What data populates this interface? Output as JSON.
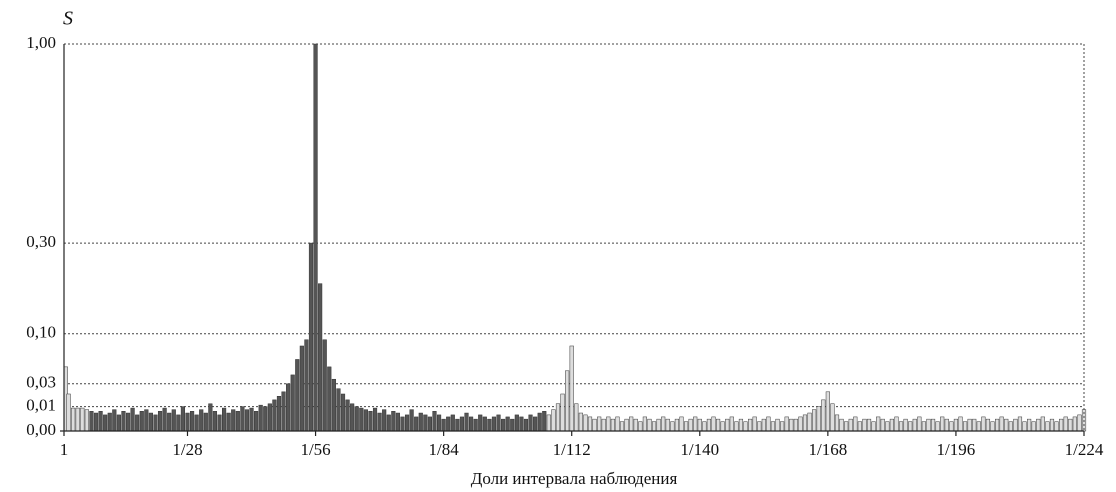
{
  "chart_data": {
    "type": "bar",
    "y_label": "S",
    "x_label": "Доли интервала наблюдения",
    "x": [
      1,
      2,
      3,
      4,
      5,
      6,
      7,
      8,
      9,
      10,
      11,
      12,
      13,
      14,
      15,
      16,
      17,
      18,
      19,
      20,
      21,
      22,
      23,
      24,
      25,
      26,
      27,
      28,
      29,
      30,
      31,
      32,
      33,
      34,
      35,
      36,
      37,
      38,
      39,
      40,
      41,
      42,
      43,
      44,
      45,
      46,
      47,
      48,
      49,
      50,
      51,
      52,
      53,
      54,
      55,
      56,
      57,
      58,
      59,
      60,
      61,
      62,
      63,
      64,
      65,
      66,
      67,
      68,
      69,
      70,
      71,
      72,
      73,
      74,
      75,
      76,
      77,
      78,
      79,
      80,
      81,
      82,
      83,
      84,
      85,
      86,
      87,
      88,
      89,
      90,
      91,
      92,
      93,
      94,
      95,
      96,
      97,
      98,
      99,
      100,
      101,
      102,
      103,
      104,
      105,
      106,
      107,
      108,
      109,
      110,
      111,
      112,
      113,
      114,
      115,
      116,
      117,
      118,
      119,
      120,
      121,
      122,
      123,
      124,
      125,
      126,
      127,
      128,
      129,
      130,
      131,
      132,
      133,
      134,
      135,
      136,
      137,
      138,
      139,
      140,
      141,
      142,
      143,
      144,
      145,
      146,
      147,
      148,
      149,
      150,
      151,
      152,
      153,
      154,
      155,
      156,
      157,
      158,
      159,
      160,
      161,
      162,
      163,
      164,
      165,
      166,
      167,
      168,
      169,
      170,
      171,
      172,
      173,
      174,
      175,
      176,
      177,
      178,
      179,
      180,
      181,
      182,
      183,
      184,
      185,
      186,
      187,
      188,
      189,
      190,
      191,
      192,
      193,
      194,
      195,
      196,
      197,
      198,
      199,
      200,
      201,
      202,
      203,
      204,
      205,
      206,
      207,
      208,
      209,
      210,
      211,
      212,
      213,
      214,
      215,
      216,
      217,
      218,
      219,
      220,
      221,
      222,
      223,
      224
    ],
    "values": [
      0.05,
      0.02,
      0.009,
      0.009,
      0.009,
      0.008,
      0.007,
      0.006,
      0.007,
      0.005,
      0.006,
      0.008,
      0.005,
      0.007,
      0.006,
      0.009,
      0.005,
      0.007,
      0.008,
      0.006,
      0.005,
      0.007,
      0.009,
      0.006,
      0.008,
      0.005,
      0.01,
      0.006,
      0.007,
      0.005,
      0.008,
      0.006,
      0.012,
      0.007,
      0.005,
      0.009,
      0.006,
      0.008,
      0.007,
      0.01,
      0.008,
      0.009,
      0.007,
      0.011,
      0.01,
      0.012,
      0.015,
      0.018,
      0.022,
      0.03,
      0.04,
      0.06,
      0.08,
      0.09,
      0.3,
      1,
      0.2,
      0.09,
      0.05,
      0.035,
      0.025,
      0.02,
      0.015,
      0.012,
      0.01,
      0.009,
      0.008,
      0.007,
      0.009,
      0.006,
      0.008,
      0.005,
      0.007,
      0.006,
      0.004,
      0.005,
      0.008,
      0.004,
      0.006,
      0.005,
      0.004,
      0.007,
      0.005,
      0.003,
      0.004,
      0.005,
      0.003,
      0.004,
      0.006,
      0.004,
      0.003,
      0.005,
      0.004,
      0.003,
      0.004,
      0.005,
      0.003,
      0.004,
      0.003,
      0.005,
      0.004,
      0.003,
      0.005,
      0.004,
      0.006,
      0.007,
      0.005,
      0.008,
      0.012,
      0.02,
      0.045,
      0.08,
      0.012,
      0.006,
      0.005,
      0.004,
      0.003,
      0.004,
      0.003,
      0.004,
      0.003,
      0.004,
      0.002,
      0.003,
      0.004,
      0.003,
      0.002,
      0.004,
      0.003,
      0.002,
      0.003,
      0.004,
      0.003,
      0.002,
      0.003,
      0.004,
      0.002,
      0.003,
      0.004,
      0.003,
      0.002,
      0.003,
      0.004,
      0.003,
      0.002,
      0.003,
      0.004,
      0.002,
      0.003,
      0.002,
      0.003,
      0.004,
      0.002,
      0.003,
      0.004,
      0.002,
      0.003,
      0.002,
      0.004,
      0.003,
      0.003,
      0.004,
      0.005,
      0.006,
      0.008,
      0.01,
      0.015,
      0.022,
      0.012,
      0.005,
      0.003,
      0.002,
      0.003,
      0.004,
      0.002,
      0.003,
      0.003,
      0.002,
      0.004,
      0.003,
      0.002,
      0.003,
      0.004,
      0.002,
      0.003,
      0.002,
      0.003,
      0.004,
      0.002,
      0.003,
      0.003,
      0.002,
      0.004,
      0.003,
      0.002,
      0.003,
      0.004,
      0.002,
      0.003,
      0.003,
      0.002,
      0.004,
      0.003,
      0.002,
      0.003,
      0.004,
      0.003,
      0.002,
      0.003,
      0.004,
      0.002,
      0.003,
      0.002,
      0.003,
      0.004,
      0.002,
      0.003,
      0.002,
      0.003,
      0.004,
      0.003,
      0.004,
      0.005,
      0.008
    ],
    "colors": [
      "#ddd",
      "#ddd",
      "#ddd",
      "#ddd",
      "#ddd",
      "#ddd",
      "#555",
      "#555",
      "#555",
      "#555",
      "#555",
      "#555",
      "#555",
      "#555",
      "#555",
      "#555",
      "#555",
      "#555",
      "#555",
      "#555",
      "#555",
      "#555",
      "#555",
      "#555",
      "#555",
      "#555",
      "#555",
      "#555",
      "#555",
      "#555",
      "#555",
      "#555",
      "#555",
      "#555",
      "#555",
      "#555",
      "#555",
      "#555",
      "#555",
      "#555",
      "#555",
      "#555",
      "#555",
      "#555",
      "#555",
      "#555",
      "#555",
      "#555",
      "#555",
      "#555",
      "#555",
      "#555",
      "#555",
      "#555",
      "#555",
      "#555",
      "#555",
      "#555",
      "#555",
      "#555",
      "#555",
      "#555",
      "#555",
      "#555",
      "#555",
      "#555",
      "#555",
      "#555",
      "#555",
      "#555",
      "#555",
      "#555",
      "#555",
      "#555",
      "#555",
      "#555",
      "#555",
      "#555",
      "#555",
      "#555",
      "#555",
      "#555",
      "#555",
      "#555",
      "#555",
      "#555",
      "#555",
      "#555",
      "#555",
      "#555",
      "#555",
      "#555",
      "#555",
      "#555",
      "#555",
      "#555",
      "#555",
      "#555",
      "#555",
      "#555",
      "#555",
      "#555",
      "#555",
      "#555",
      "#555",
      "#555",
      "#ddd",
      "#ddd",
      "#ddd",
      "#ddd",
      "#ddd",
      "#ddd",
      "#ddd",
      "#ddd",
      "#ddd",
      "#ddd",
      "#ddd",
      "#ddd",
      "#ddd",
      "#ddd",
      "#ddd",
      "#ddd",
      "#ddd",
      "#ddd",
      "#ddd",
      "#ddd",
      "#ddd",
      "#ddd",
      "#ddd",
      "#ddd",
      "#ddd",
      "#ddd",
      "#ddd",
      "#ddd",
      "#ddd",
      "#ddd",
      "#ddd",
      "#ddd",
      "#ddd",
      "#ddd",
      "#ddd",
      "#ddd",
      "#ddd",
      "#ddd",
      "#ddd",
      "#ddd",
      "#ddd",
      "#ddd",
      "#ddd",
      "#ddd",
      "#ddd",
      "#ddd",
      "#ddd",
      "#ddd",
      "#ddd",
      "#ddd",
      "#ddd",
      "#ddd",
      "#ddd",
      "#ddd",
      "#ddd",
      "#ddd",
      "#ddd",
      "#ddd",
      "#ddd",
      "#ddd",
      "#ddd",
      "#ddd",
      "#ddd",
      "#ddd",
      "#ddd",
      "#ddd",
      "#ddd",
      "#ddd",
      "#ddd",
      "#ddd",
      "#ddd",
      "#ddd",
      "#ddd",
      "#ddd",
      "#ddd",
      "#ddd",
      "#ddd",
      "#ddd",
      "#ddd",
      "#ddd",
      "#ddd",
      "#ddd",
      "#ddd",
      "#ddd",
      "#ddd",
      "#ddd",
      "#ddd",
      "#ddd",
      "#ddd",
      "#ddd",
      "#ddd",
      "#ddd",
      "#ddd",
      "#ddd",
      "#ddd",
      "#ddd",
      "#ddd",
      "#ddd",
      "#ddd",
      "#ddd",
      "#ddd",
      "#ddd",
      "#ddd",
      "#ddd",
      "#ddd",
      "#ddd",
      "#ddd",
      "#ddd",
      "#ddd",
      "#ddd",
      "#ddd",
      "#ddd",
      "#ddd",
      "#ddd",
      "#ddd",
      "#ddd",
      "#ddd",
      "#ddd"
    ],
    "xlim": [
      1,
      224
    ],
    "xticks": [
      {
        "value": 1,
        "label": "1"
      },
      {
        "value": 28,
        "label": "1/28"
      },
      {
        "value": 56,
        "label": "1/56"
      },
      {
        "value": 84,
        "label": "1/84"
      },
      {
        "value": 112,
        "label": "1/112"
      },
      {
        "value": 140,
        "label": "1/140"
      },
      {
        "value": 168,
        "label": "1/168"
      },
      {
        "value": 196,
        "label": "1/196"
      },
      {
        "value": 224,
        "label": "1/224"
      }
    ],
    "ylim": [
      0,
      1
    ],
    "yscale": "power",
    "yexponent": 0.6,
    "yticks": [
      {
        "value": 0,
        "label": "0,00"
      },
      {
        "value": 0.01,
        "label": "0,01"
      },
      {
        "value": 0.03,
        "label": "0,03"
      },
      {
        "value": 0.1,
        "label": "0,10"
      },
      {
        "value": 0.3,
        "label": "0,30"
      },
      {
        "value": 1,
        "label": "1,00"
      }
    ],
    "grid": true
  }
}
